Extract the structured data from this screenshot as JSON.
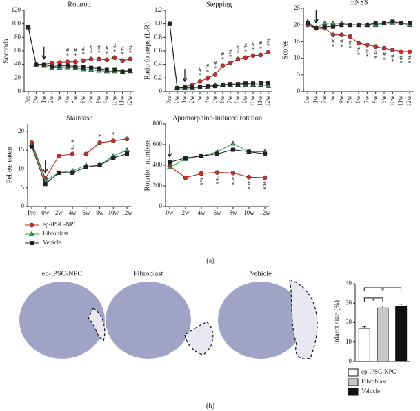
{
  "chart_data": [
    {
      "type": "line",
      "title": "Rotarod",
      "ylabel": "Seconds",
      "categories": [
        "Pre",
        "0w",
        "1w",
        "2w",
        "3w",
        "4w",
        "5w",
        "6w",
        "7w",
        "8w",
        "9w",
        "10w",
        "11w",
        "12w"
      ],
      "ylim": [
        0,
        120
      ],
      "yticks": [
        0,
        20,
        40,
        60,
        80,
        100,
        120
      ],
      "arrow_index": 2,
      "series": [
        {
          "name": "ep-iPSC-NPC",
          "color": "#c9302c",
          "marker": "circle",
          "values": [
            95,
            40,
            40,
            42,
            43,
            44,
            44,
            46,
            48,
            48,
            47,
            50,
            46,
            48
          ]
        },
        {
          "name": "Fibroblast",
          "color": "#3aa35c",
          "marker": "triangle",
          "values": [
            95,
            40,
            38,
            35,
            35,
            36,
            35,
            33,
            32,
            31,
            30,
            30,
            29,
            30
          ]
        },
        {
          "name": "Vehicle",
          "color": "#222222",
          "marker": "square",
          "values": [
            95,
            40,
            40,
            37,
            38,
            38,
            37,
            36,
            35,
            34,
            32,
            32,
            30,
            31
          ]
        }
      ],
      "significance_position": "above",
      "significance": [
        null,
        null,
        null,
        null,
        null,
        [
          "#",
          "*"
        ],
        [
          "#",
          "*"
        ],
        [
          "#",
          "*"
        ],
        [
          "#",
          "*"
        ],
        [
          "#",
          "*"
        ],
        [
          "#",
          "*"
        ],
        [
          "#",
          "*"
        ],
        [
          "#",
          "*"
        ],
        [
          "#",
          "*"
        ]
      ]
    },
    {
      "type": "line",
      "title": "Stepping",
      "ylabel": "Ratio fo steps (L/R)",
      "categories": [
        "Pre",
        "0w",
        "1w",
        "2w",
        "3w",
        "4w",
        "5w",
        "6w",
        "7w",
        "8w",
        "9w",
        "10w",
        "11w",
        "12w"
      ],
      "ylim": [
        0,
        1.2
      ],
      "yticks": [
        0,
        0.2,
        0.4,
        0.6,
        0.8,
        {
          "value": 1,
          "label": "1.0"
        },
        1.2
      ],
      "arrow_index": 2,
      "series": [
        {
          "color": "#c9302c",
          "marker": "circle",
          "values": [
            1,
            0.05,
            0.07,
            0.1,
            0.15,
            0.2,
            0.25,
            0.38,
            0.42,
            0.48,
            0.5,
            0.53,
            0.54,
            0.58
          ]
        },
        {
          "color": "#3aa35c",
          "marker": "triangle",
          "values": [
            1,
            0.05,
            0.05,
            0.05,
            0.06,
            0.07,
            0.1,
            0.1,
            0.1,
            0.1,
            0.1,
            0.1,
            0.1,
            0.08
          ]
        },
        {
          "color": "#222222",
          "marker": "square",
          "values": [
            1,
            0.05,
            0.06,
            0.06,
            0.07,
            0.08,
            0.08,
            0.1,
            0.11,
            0.11,
            0.12,
            0.12,
            0.13,
            0.13
          ]
        }
      ],
      "significance_position": "above",
      "significance": [
        null,
        null,
        null,
        null,
        [
          "#",
          "*"
        ],
        [
          "#",
          "*"
        ],
        [
          "#",
          "*"
        ],
        [
          "#",
          "*"
        ],
        [
          "#",
          "*"
        ],
        [
          "#",
          "*"
        ],
        [
          "#",
          "*"
        ],
        [
          "#",
          "*"
        ],
        [
          "#",
          "*"
        ],
        [
          "#",
          "*"
        ]
      ]
    },
    {
      "type": "line",
      "title": "mNSS",
      "ylabel": "Scores",
      "categories": [
        "0w",
        "1w",
        "2w",
        "3w",
        "4w",
        "5w",
        "6w",
        "7w",
        "8w",
        "9w",
        "10w",
        "11w",
        "12w"
      ],
      "ylim": [
        0,
        25
      ],
      "yticks": [
        0,
        5,
        10,
        15,
        20,
        25
      ],
      "arrow_index": 1,
      "series": [
        {
          "color": "#c9302c",
          "marker": "circle",
          "values": [
            20,
            19,
            19,
            17,
            17,
            16.5,
            14.5,
            14,
            13.5,
            13,
            12.5,
            12,
            12
          ]
        },
        {
          "color": "#3aa35c",
          "marker": "triangle",
          "values": [
            21,
            19,
            20.5,
            20.5,
            20.5,
            20,
            20,
            20,
            20,
            20.5,
            20.5,
            20.5,
            20
          ]
        },
        {
          "color": "#222222",
          "marker": "square",
          "values": [
            20.5,
            19,
            19.5,
            19.5,
            20,
            20,
            20,
            20,
            20.5,
            20.5,
            21,
            20.5,
            20.5
          ]
        }
      ],
      "significance_position": "below",
      "significance": [
        null,
        null,
        null,
        [
          "#",
          "*"
        ],
        [
          "#",
          "*"
        ],
        [
          "#",
          "*"
        ],
        [
          "#",
          "*"
        ],
        [
          "#",
          "*"
        ],
        [
          "#",
          "*"
        ],
        [
          "#",
          "*"
        ],
        [
          "#",
          "*"
        ],
        [
          "#",
          "*"
        ],
        [
          "#",
          "*"
        ]
      ]
    },
    {
      "type": "line",
      "title": "Staircase",
      "ylabel": "Pellets eaten",
      "categories": [
        "Pre",
        "0w",
        "2w",
        "4w",
        "6w",
        "8w",
        "10w",
        "12w"
      ],
      "ylim": [
        0,
        22
      ],
      "yticks": [
        0,
        5,
        10,
        15,
        20
      ],
      "arrow_index": 1,
      "series": [
        {
          "color": "#c9302c",
          "marker": "circle",
          "values": [
            17,
            7.5,
            13.5,
            14,
            14,
            17,
            17.5,
            18
          ]
        },
        {
          "color": "#3aa35c",
          "marker": "triangle",
          "values": [
            16.5,
            7,
            9,
            9.5,
            11,
            11,
            13.5,
            15
          ]
        },
        {
          "color": "#222222",
          "marker": "square",
          "values": [
            16,
            6,
            9,
            9,
            10.5,
            11,
            13,
            14
          ]
        }
      ],
      "significance_position": "above",
      "significance": [
        null,
        null,
        null,
        [
          "*",
          "#"
        ],
        null,
        [
          "*"
        ],
        [
          "*"
        ],
        null
      ]
    },
    {
      "type": "line",
      "title": "Apomorphine-induced rotation",
      "ylabel": "Rotation numbers",
      "categories": [
        "0w",
        "2w",
        "4w",
        "6w",
        "8w",
        "10w",
        "12w"
      ],
      "ylim": [
        0,
        800
      ],
      "yticks": [
        0,
        200,
        400,
        600,
        800
      ],
      "arrow_index": 0,
      "series": [
        {
          "color": "#c9302c",
          "marker": "circle",
          "values": [
            390,
            280,
            320,
            330,
            325,
            285,
            280
          ]
        },
        {
          "color": "#3aa35c",
          "marker": "triangle",
          "values": [
            380,
            460,
            490,
            530,
            610,
            530,
            530
          ]
        },
        {
          "color": "#222222",
          "marker": "square",
          "values": [
            430,
            470,
            490,
            510,
            550,
            530,
            510
          ]
        }
      ],
      "significance_position": "below",
      "significance": [
        null,
        null,
        [
          "#",
          "*"
        ],
        [
          "#",
          "*"
        ],
        [
          "#",
          "*"
        ],
        [
          "#",
          "*"
        ],
        [
          "#",
          "*"
        ]
      ]
    },
    {
      "type": "bar",
      "ylabel": "Infarct size (%)",
      "categories": [
        "ep-iPSC-NPC",
        "Fibroblast",
        "Vehicle"
      ],
      "values": [
        17,
        27.5,
        28.5
      ],
      "errors": [
        1,
        1,
        1
      ],
      "colors": [
        "#ffffff",
        "#c8c8c8",
        "#111111"
      ],
      "ylim": [
        0,
        40
      ],
      "yticks": [
        0,
        10,
        20,
        30,
        40
      ],
      "brackets": [
        {
          "from": 0,
          "to": 1,
          "label": "*"
        },
        {
          "from": 0,
          "to": 2,
          "label": "*"
        }
      ]
    }
  ],
  "panel_labels": [
    "(a)",
    "(b)"
  ],
  "images": [
    "ep-iPSC-NPC",
    "Fibroblast",
    "Vehicle"
  ]
}
